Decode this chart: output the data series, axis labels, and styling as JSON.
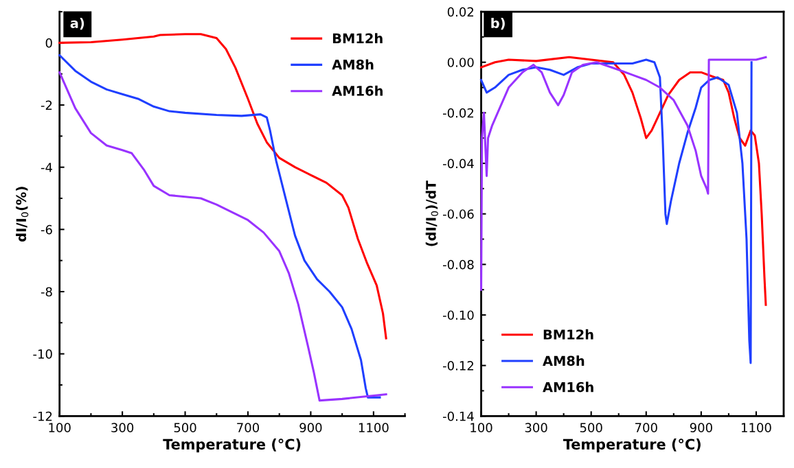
{
  "chart_data": [
    {
      "type": "line",
      "xlabel": "Temperature (°C)",
      "ylabel": "dI/I$_{0}$(%)",
      "annotations": [
        "a)"
      ],
      "xlim": [
        100,
        1200
      ],
      "xticks": [
        100,
        300,
        500,
        700,
        900,
        1100
      ],
      "ylim": [
        -12,
        1
      ],
      "yticks": [
        -12,
        -10,
        -8,
        -6,
        -4,
        -2,
        0
      ],
      "grid": false,
      "legend": "top right",
      "line_style": "solid",
      "marker": "none",
      "series": [
        {
          "name": "BM12h",
          "color": "#ff0000",
          "x": [
            100,
            200,
            300,
            400,
            420,
            500,
            550,
            600,
            630,
            660,
            700,
            730,
            760,
            800,
            850,
            900,
            950,
            1000,
            1020,
            1050,
            1080,
            1110,
            1130,
            1140
          ],
          "values": [
            0,
            0.02,
            0.1,
            0.2,
            0.25,
            0.28,
            0.28,
            0.15,
            -0.2,
            -0.8,
            -1.8,
            -2.6,
            -3.2,
            -3.7,
            -4.0,
            -4.25,
            -4.5,
            -4.9,
            -5.3,
            -6.3,
            -7.1,
            -7.8,
            -8.7,
            -9.5
          ]
        },
        {
          "name": "AM8h",
          "color": "#1f3fff",
          "x": [
            100,
            150,
            200,
            250,
            300,
            350,
            400,
            450,
            500,
            600,
            680,
            740,
            760,
            770,
            790,
            820,
            850,
            880,
            920,
            960,
            1000,
            1030,
            1060,
            1075,
            1082,
            1120
          ],
          "values": [
            -0.4,
            -0.9,
            -1.25,
            -1.5,
            -1.65,
            -1.8,
            -2.05,
            -2.2,
            -2.25,
            -2.32,
            -2.35,
            -2.3,
            -2.4,
            -2.8,
            -3.8,
            -5.0,
            -6.2,
            -7.0,
            -7.6,
            -8.0,
            -8.5,
            -9.2,
            -10.2,
            -11.1,
            -11.4,
            -11.4
          ]
        },
        {
          "name": "AM16h",
          "color": "#9933ff",
          "x": [
            100,
            150,
            200,
            250,
            300,
            330,
            370,
            400,
            450,
            500,
            550,
            600,
            650,
            700,
            750,
            800,
            830,
            860,
            890,
            910,
            928,
            1000,
            1140
          ],
          "values": [
            -0.95,
            -2.1,
            -2.9,
            -3.3,
            -3.45,
            -3.55,
            -4.1,
            -4.6,
            -4.9,
            -4.95,
            -5.0,
            -5.2,
            -5.45,
            -5.7,
            -6.1,
            -6.7,
            -7.4,
            -8.4,
            -9.7,
            -10.6,
            -11.5,
            -11.45,
            -11.3
          ]
        }
      ]
    },
    {
      "type": "line",
      "xlabel": "Temperature (°C)",
      "ylabel": "(dI/I$_{0}$)/dT",
      "annotations": [
        "b)"
      ],
      "xlim": [
        100,
        1200
      ],
      "xticks": [
        100,
        300,
        500,
        700,
        900,
        1100
      ],
      "ylim": [
        -0.14,
        0.02
      ],
      "yticks": [
        {
          "value": -0.14,
          "label": "-0.14"
        },
        {
          "value": -0.12,
          "label": "-0.12"
        },
        {
          "value": -0.1,
          "label": "-0.10"
        },
        {
          "value": -0.08,
          "label": "-0.08"
        },
        {
          "value": -0.06,
          "label": "-0.06"
        },
        {
          "value": -0.04,
          "label": "-0.04"
        },
        {
          "value": -0.02,
          "label": "-0.02"
        },
        {
          "value": 0,
          "label": "0.00"
        },
        {
          "value": 0.02,
          "label": "0.02"
        }
      ],
      "grid": false,
      "legend": "bottom left",
      "line_style": "solid",
      "marker": "none",
      "series": [
        {
          "name": "BM12h",
          "color": "#ff0000",
          "x": [
            100,
            150,
            200,
            300,
            420,
            500,
            580,
            620,
            650,
            680,
            700,
            720,
            750,
            780,
            820,
            860,
            900,
            950,
            980,
            1000,
            1020,
            1040,
            1060,
            1080,
            1095,
            1110,
            1120,
            1130,
            1135
          ],
          "values": [
            -0.002,
            0,
            0.001,
            0.0005,
            0.002,
            0.001,
            0,
            -0.005,
            -0.012,
            -0.022,
            -0.03,
            -0.027,
            -0.02,
            -0.013,
            -0.007,
            -0.004,
            -0.004,
            -0.006,
            -0.007,
            -0.012,
            -0.022,
            -0.03,
            -0.033,
            -0.027,
            -0.029,
            -0.04,
            -0.06,
            -0.085,
            -0.096
          ]
        },
        {
          "name": "AM8h",
          "color": "#1f3fff",
          "x": [
            100,
            120,
            150,
            200,
            250,
            300,
            350,
            400,
            450,
            500,
            600,
            650,
            700,
            730,
            750,
            760,
            770,
            775,
            790,
            820,
            850,
            880,
            900,
            930,
            960,
            1000,
            1030,
            1050,
            1065,
            1075,
            1080,
            1083
          ],
          "values": [
            -0.007,
            -0.012,
            -0.01,
            -0.005,
            -0.003,
            -0.002,
            -0.003,
            -0.005,
            -0.002,
            -0.0005,
            -0.0005,
            -0.0005,
            0.001,
            0,
            -0.006,
            -0.03,
            -0.06,
            -0.064,
            -0.055,
            -0.04,
            -0.028,
            -0.018,
            -0.01,
            -0.007,
            -0.006,
            -0.009,
            -0.02,
            -0.04,
            -0.07,
            -0.11,
            -0.119,
            0
          ]
        },
        {
          "name": "AM16h",
          "color": "#9933ff",
          "x": [
            100,
            103,
            110,
            120,
            125,
            140,
            160,
            200,
            250,
            290,
            320,
            350,
            380,
            400,
            430,
            470,
            520,
            600,
            650,
            700,
            750,
            800,
            850,
            880,
            900,
            920,
            925,
            928,
            1000,
            1100,
            1135
          ],
          "values": [
            -0.09,
            -0.03,
            -0.02,
            -0.045,
            -0.03,
            -0.025,
            -0.02,
            -0.01,
            -0.004,
            -0.001,
            -0.004,
            -0.012,
            -0.017,
            -0.013,
            -0.004,
            -0.001,
            0,
            -0.003,
            -0.005,
            -0.007,
            -0.01,
            -0.015,
            -0.025,
            -0.035,
            -0.045,
            -0.05,
            -0.052,
            0.001,
            0.001,
            0.001,
            0.002
          ]
        }
      ]
    }
  ]
}
